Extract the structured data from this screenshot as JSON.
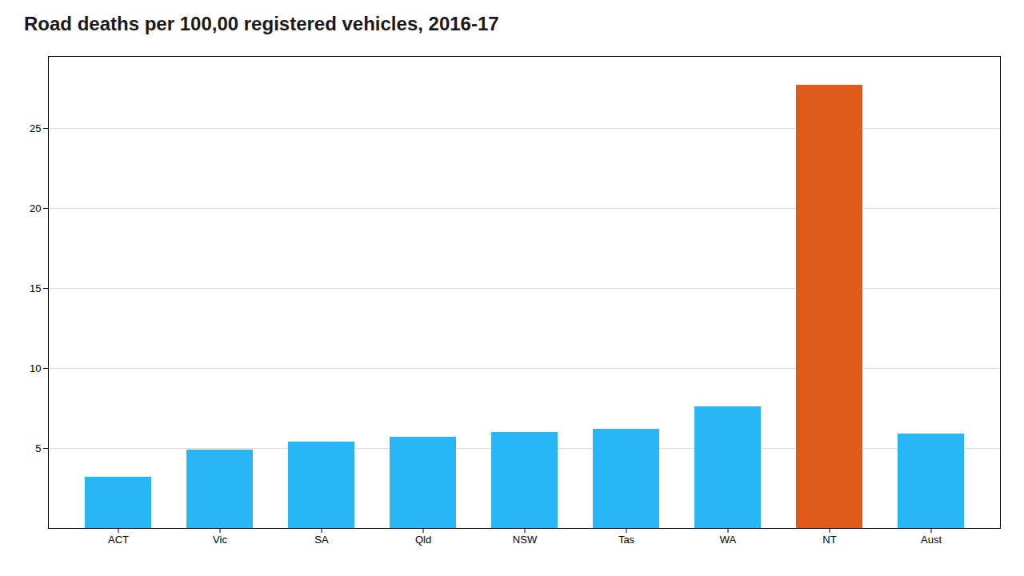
{
  "chart_data": {
    "type": "bar",
    "title": "Road deaths per 100,00 registered vehicles, 2016-17",
    "categories": [
      "ACT",
      "Vic",
      "SA",
      "Qld",
      "NSW",
      "Tas",
      "WA",
      "NT",
      "Aust"
    ],
    "values": [
      3.2,
      4.9,
      5.4,
      5.7,
      6.0,
      6.2,
      7.6,
      27.7,
      5.9
    ],
    "colors": [
      "#29b6f6",
      "#29b6f6",
      "#29b6f6",
      "#29b6f6",
      "#29b6f6",
      "#29b6f6",
      "#29b6f6",
      "#e05a1a",
      "#29b6f6"
    ],
    "ylim": [
      0,
      29.5
    ],
    "yticks": [
      5,
      10,
      15,
      20,
      25
    ],
    "grid": true
  }
}
